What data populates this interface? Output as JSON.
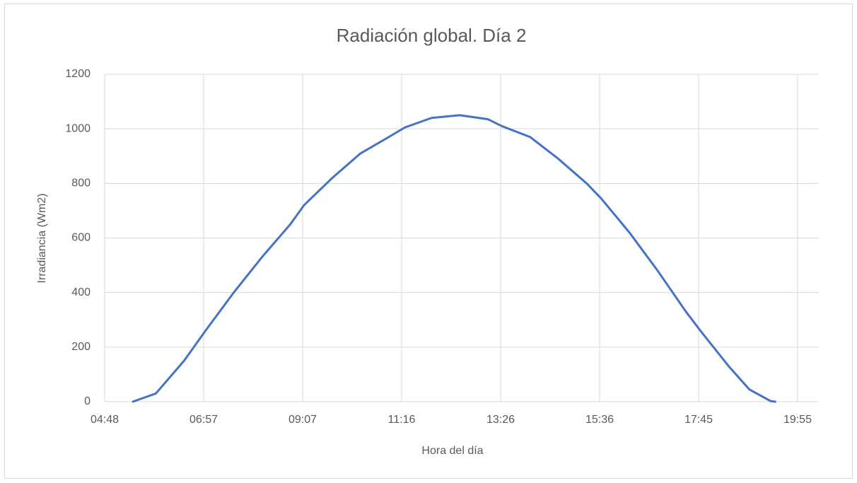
{
  "chart_data": {
    "type": "line",
    "title": "Radiación global. Día 2",
    "x_label": "Hora del día",
    "y_label": "Irradiancia (Wm2)",
    "x": [
      325,
      355,
      392,
      420,
      457,
      494,
      531,
      549,
      586,
      623,
      660,
      681,
      716,
      753,
      790,
      808,
      845,
      882,
      919,
      938,
      975,
      1012,
      1049,
      1068,
      1105,
      1132,
      1160,
      1166
    ],
    "series": [
      {
        "name": "Irradiancia",
        "color": "#4472c4",
        "values": [
          0,
          30,
          150,
          260,
          400,
          530,
          650,
          720,
          820,
          910,
          970,
          1005,
          1040,
          1050,
          1035,
          1010,
          970,
          890,
          800,
          745,
          620,
          480,
          330,
          260,
          130,
          45,
          2,
          0
        ]
      }
    ],
    "xlim": [
      288,
      1223
    ],
    "xticks": [
      {
        "value": 288,
        "label": "04:48"
      },
      {
        "value": 417.6,
        "label": "06:57"
      },
      {
        "value": 547.2,
        "label": "09:07"
      },
      {
        "value": 676.8,
        "label": "11:16"
      },
      {
        "value": 806.4,
        "label": "13:26"
      },
      {
        "value": 936,
        "label": "15:36"
      },
      {
        "value": 1065.6,
        "label": "17:45"
      },
      {
        "value": 1195.2,
        "label": "19:55"
      }
    ],
    "ylim": [
      0,
      1200
    ],
    "yticks": [
      0,
      200,
      400,
      600,
      800,
      1000,
      1200
    ],
    "grid": true
  }
}
